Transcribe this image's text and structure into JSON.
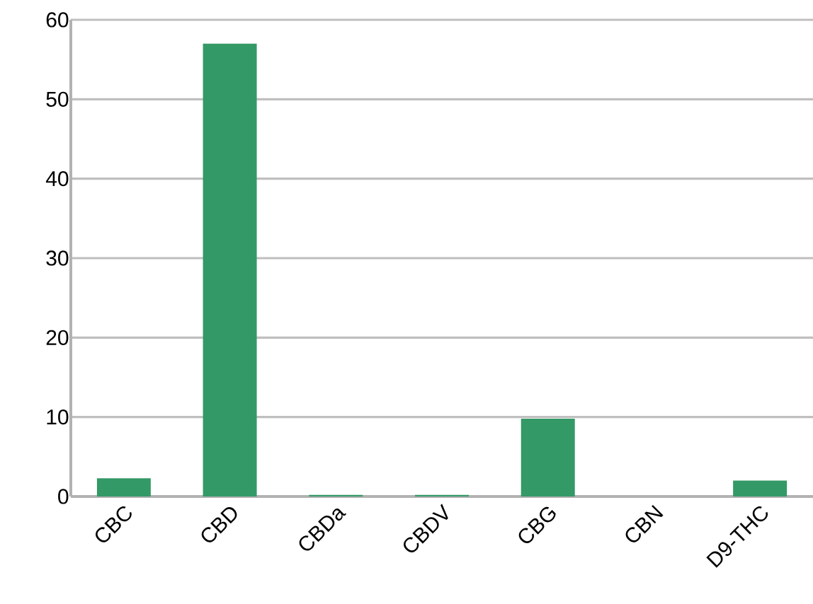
{
  "chart_data": {
    "type": "bar",
    "categories": [
      "CBC",
      "CBD",
      "CBDa",
      "CBDV",
      "CBG",
      "CBN",
      "D9-THC"
    ],
    "values": [
      2.3,
      57,
      0.2,
      0.2,
      9.8,
      0,
      2.0
    ],
    "color": "#339966",
    "ylim": [
      0,
      60
    ],
    "yticks": [
      0,
      10,
      20,
      30,
      40,
      50,
      60
    ],
    "grid": "y"
  }
}
